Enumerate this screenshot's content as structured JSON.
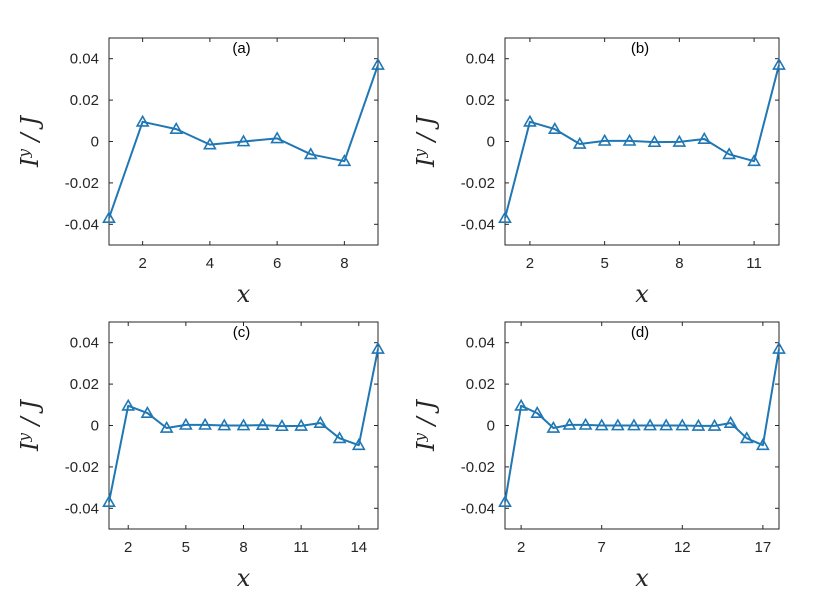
{
  "colors": {
    "series": "#1f77b4",
    "axis": "#262626"
  },
  "chart_data": [
    {
      "type": "line",
      "panel_label": "(a)",
      "xlabel": "x",
      "ylabel": "I^y / J",
      "ylabel_parts": {
        "symbol": "I",
        "sup": "y",
        "rest": " / J"
      },
      "xlim": [
        1,
        9
      ],
      "ylim": [
        -0.05,
        0.05
      ],
      "xticks": [
        2,
        4,
        6,
        8
      ],
      "yticks": [
        0.04,
        0.02,
        0,
        -0.02,
        -0.04
      ],
      "ytick_labels": [
        "0.04",
        "0.02",
        "0",
        "-0.02",
        "-0.04"
      ],
      "marker": "triangle",
      "x": [
        1,
        2,
        3,
        4,
        5,
        6,
        7,
        8,
        9
      ],
      "y": [
        -0.037,
        0.0095,
        0.006,
        -0.0015,
        0.0,
        0.0015,
        -0.0062,
        -0.0095,
        0.037
      ]
    },
    {
      "type": "line",
      "panel_label": "(b)",
      "xlabel": "x",
      "ylabel": "I^y / J",
      "ylabel_parts": {
        "symbol": "I",
        "sup": "y",
        "rest": " / J"
      },
      "xlim": [
        1,
        12
      ],
      "ylim": [
        -0.05,
        0.05
      ],
      "xticks": [
        2,
        5,
        8,
        11
      ],
      "yticks": [
        0.04,
        0.02,
        0,
        -0.02,
        -0.04
      ],
      "ytick_labels": [
        "0.04",
        "0.02",
        "0",
        "-0.02",
        "-0.04"
      ],
      "marker": "triangle",
      "x": [
        1,
        2,
        3,
        4,
        5,
        6,
        7,
        8,
        9,
        10,
        11,
        12
      ],
      "y": [
        -0.037,
        0.0095,
        0.006,
        -0.0012,
        0.0003,
        0.0003,
        -0.0003,
        -0.0002,
        0.0012,
        -0.0062,
        -0.0095,
        0.037
      ]
    },
    {
      "type": "line",
      "panel_label": "(c)",
      "xlabel": "x",
      "ylabel": "I^y / J",
      "ylabel_parts": {
        "symbol": "I",
        "sup": "y",
        "rest": " / J"
      },
      "xlim": [
        1,
        15
      ],
      "ylim": [
        -0.05,
        0.05
      ],
      "xticks": [
        2,
        5,
        8,
        11,
        14
      ],
      "yticks": [
        0.04,
        0.02,
        0,
        -0.02,
        -0.04
      ],
      "ytick_labels": [
        "0.04",
        "0.02",
        "0",
        "-0.02",
        "-0.04"
      ],
      "marker": "triangle",
      "x": [
        1,
        2,
        3,
        4,
        5,
        6,
        7,
        8,
        9,
        10,
        11,
        12,
        13,
        14,
        15
      ],
      "y": [
        -0.037,
        0.0095,
        0.006,
        -0.0012,
        0.0003,
        0.0003,
        0.0,
        0.0,
        0.0002,
        -0.0003,
        -0.0002,
        0.0012,
        -0.0062,
        -0.0095,
        0.037
      ]
    },
    {
      "type": "line",
      "panel_label": "(d)",
      "xlabel": "x",
      "ylabel": "I^y / J",
      "ylabel_parts": {
        "symbol": "I",
        "sup": "y",
        "rest": " / J"
      },
      "xlim": [
        1,
        18
      ],
      "ylim": [
        -0.05,
        0.05
      ],
      "xticks": [
        2,
        7,
        12,
        17
      ],
      "yticks": [
        0.04,
        0.02,
        0,
        -0.02,
        -0.04
      ],
      "ytick_labels": [
        "0.04",
        "0.02",
        "0",
        "-0.02",
        "-0.04"
      ],
      "marker": "triangle",
      "x": [
        1,
        2,
        3,
        4,
        5,
        6,
        7,
        8,
        9,
        10,
        11,
        12,
        13,
        14,
        15,
        16,
        17,
        18
      ],
      "y": [
        -0.037,
        0.0095,
        0.006,
        -0.0012,
        0.0003,
        0.0003,
        0.0,
        0.0,
        0.0,
        0.0,
        0.0,
        0.0,
        -0.0002,
        -0.0002,
        0.0012,
        -0.0062,
        -0.0095,
        0.037
      ]
    }
  ]
}
